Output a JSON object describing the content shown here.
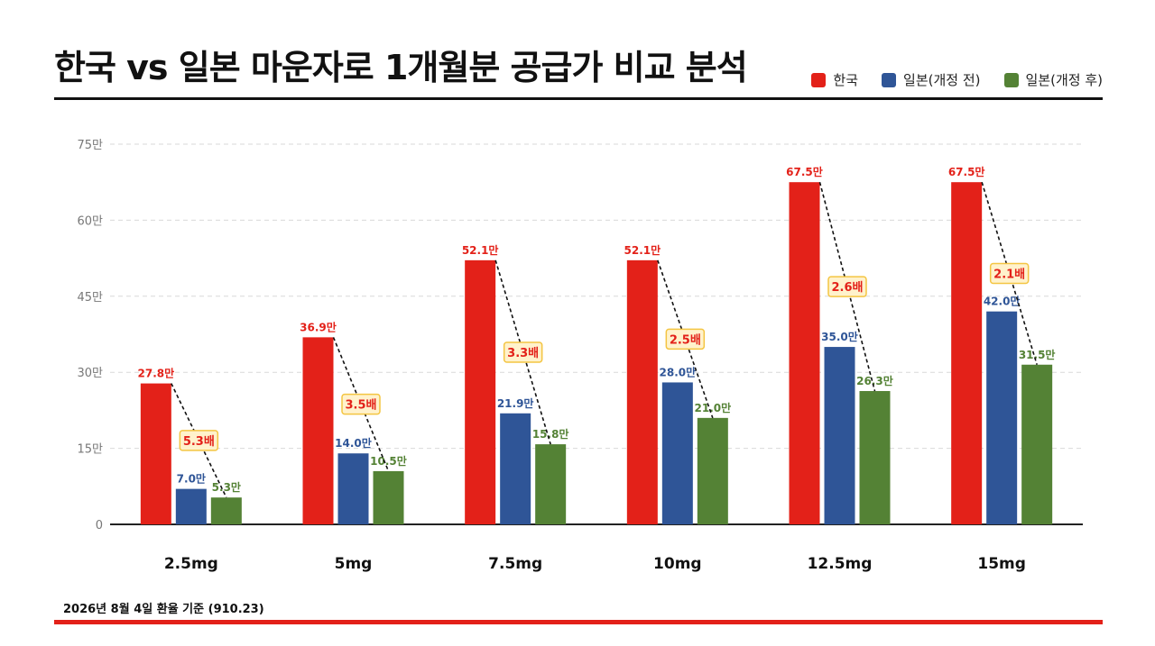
{
  "title": "한국 vs 일본 마운자로 1개월분 공급가 비교 분석",
  "footnote": "2026년 8월 4일 환율 기준 (910.23)",
  "colors": {
    "korea": "#e32119",
    "japan_before": "#2f5597",
    "japan_after": "#548235",
    "ratio_fill": "#fff2cc",
    "ratio_border": "#f4c542"
  },
  "chart_data": {
    "type": "bar",
    "categories": [
      "2.5mg",
      "5mg",
      "7.5mg",
      "10mg",
      "12.5mg",
      "15mg"
    ],
    "series": [
      {
        "name": "한국",
        "values": [
          27.8,
          36.9,
          52.1,
          52.1,
          67.5,
          67.5
        ],
        "labels": [
          "27.8만",
          "36.9만",
          "52.1만",
          "52.1만",
          "67.5만",
          "67.5만"
        ]
      },
      {
        "name": "일본(개정 전)",
        "values": [
          7.0,
          14.0,
          21.9,
          28.0,
          35.0,
          42.0
        ],
        "labels": [
          "7.0만",
          "14.0만",
          "21.9만",
          "28.0만",
          "35.0만",
          "42.0만"
        ]
      },
      {
        "name": "일본(개정 후)",
        "values": [
          5.3,
          10.5,
          15.8,
          21.0,
          26.3,
          31.5
        ],
        "labels": [
          "5.3만",
          "10.5만",
          "15.8만",
          "21.0만",
          "26.3만",
          "31.5만"
        ]
      }
    ],
    "ratios": [
      "5.3배",
      "3.5배",
      "3.3배",
      "2.5배",
      "2.6배",
      "2.1배"
    ],
    "yticks": [
      0,
      15,
      30,
      45,
      60,
      75
    ],
    "ytick_labels": [
      "0",
      "15만",
      "30만",
      "45만",
      "60만",
      "75만"
    ],
    "ylim": [
      0,
      75
    ],
    "grid": true,
    "legend_position": "top-right"
  }
}
